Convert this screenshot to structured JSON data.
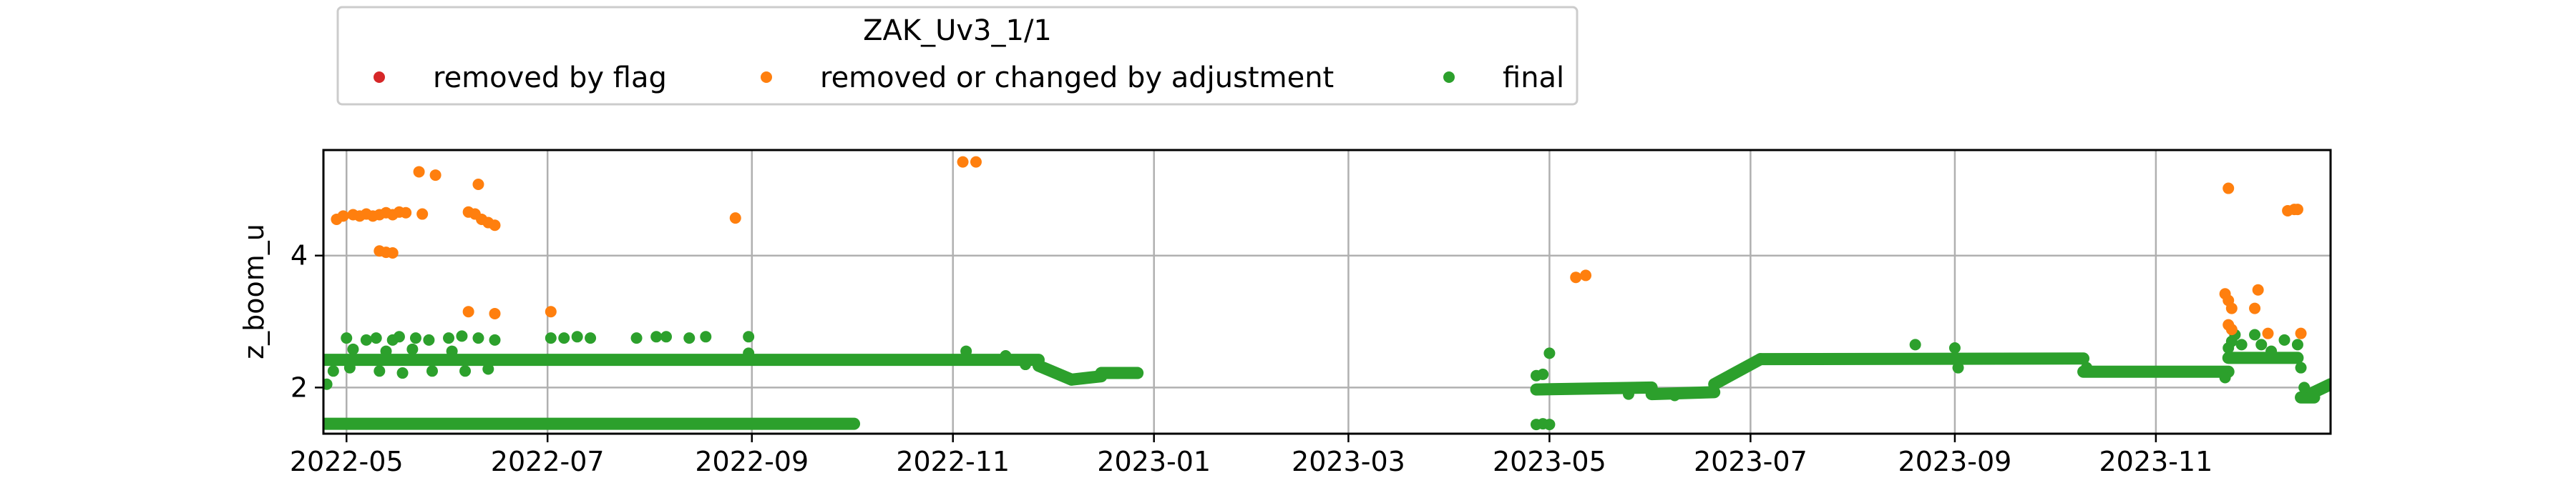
{
  "chart_data": {
    "type": "scatter",
    "title": "",
    "xlabel": "",
    "ylabel": "z_boom_u",
    "grid": true,
    "legend": {
      "title": "ZAK_Uv3_1/1",
      "placement": "top-left-outside",
      "entries": [
        "removed by flag",
        "removed or changed by adjustment",
        "final"
      ]
    },
    "xlim": [
      "2022-04-24",
      "2023-12-24"
    ],
    "ylim": [
      1.3,
      5.6
    ],
    "x_ticks": [
      "2022-05-01",
      "2022-07-01",
      "2022-09-01",
      "2022-11-01",
      "2023-01-01",
      "2023-03-01",
      "2023-05-01",
      "2023-07-01",
      "2023-09-01",
      "2023-11-01"
    ],
    "x_tick_labels": [
      "2022-05",
      "2022-07",
      "2022-09",
      "2022-11",
      "2023-01",
      "2023-03",
      "2023-05",
      "2023-07",
      "2023-09",
      "2023-11"
    ],
    "y_ticks": [
      2,
      4
    ],
    "colors": {
      "removed by flag": "#d62728",
      "removed or changed by adjustment": "#ff7f0e",
      "final": "#2ca02c"
    },
    "series": [
      {
        "name": "removed by flag",
        "points": []
      },
      {
        "name": "removed or changed by adjustment",
        "points": [
          [
            "2022-04-28",
            4.55
          ],
          [
            "2022-04-30",
            4.6
          ],
          [
            "2022-05-03",
            4.62
          ],
          [
            "2022-05-05",
            4.6
          ],
          [
            "2022-05-07",
            4.63
          ],
          [
            "2022-05-09",
            4.6
          ],
          [
            "2022-05-11",
            4.62
          ],
          [
            "2022-05-13",
            4.65
          ],
          [
            "2022-05-15",
            4.62
          ],
          [
            "2022-05-17",
            4.66
          ],
          [
            "2022-05-19",
            4.65
          ],
          [
            "2022-05-24",
            4.63
          ],
          [
            "2022-05-11",
            4.07
          ],
          [
            "2022-05-13",
            4.05
          ],
          [
            "2022-05-15",
            4.04
          ],
          [
            "2022-05-23",
            5.27
          ],
          [
            "2022-05-28",
            5.22
          ],
          [
            "2022-06-07",
            4.66
          ],
          [
            "2022-06-09",
            4.63
          ],
          [
            "2022-06-11",
            4.55
          ],
          [
            "2022-06-13",
            4.5
          ],
          [
            "2022-06-15",
            4.46
          ],
          [
            "2022-06-10",
            5.08
          ],
          [
            "2022-06-07",
            3.15
          ],
          [
            "2022-06-15",
            3.12
          ],
          [
            "2022-07-02",
            3.15
          ],
          [
            "2022-08-27",
            4.57
          ],
          [
            "2022-11-04",
            5.42
          ],
          [
            "2022-11-08",
            5.42
          ],
          [
            "2023-05-09",
            3.67
          ],
          [
            "2023-05-12",
            3.7
          ],
          [
            "2023-11-23",
            5.02
          ],
          [
            "2023-11-22",
            3.42
          ],
          [
            "2023-11-23",
            3.32
          ],
          [
            "2023-11-24",
            3.2
          ],
          [
            "2023-11-23",
            2.95
          ],
          [
            "2023-11-24",
            2.88
          ],
          [
            "2023-12-01",
            3.2
          ],
          [
            "2023-12-02",
            3.48
          ],
          [
            "2023-12-05",
            2.82
          ],
          [
            "2023-12-11",
            4.68
          ],
          [
            "2023-12-13",
            4.7
          ],
          [
            "2023-12-14",
            4.7
          ],
          [
            "2023-12-15",
            2.82
          ]
        ]
      },
      {
        "name": "final",
        "segments": [
          {
            "x0": "2022-04-24",
            "x1": "2022-11-27",
            "y0": 2.42,
            "y1": 2.42
          },
          {
            "x0": "2022-11-27",
            "x1": "2022-12-07",
            "y0": 2.33,
            "y1": 2.12
          },
          {
            "x0": "2022-12-07",
            "x1": "2022-12-16",
            "y0": 2.12,
            "y1": 2.17
          },
          {
            "x0": "2022-12-16",
            "x1": "2022-12-27",
            "y0": 2.22,
            "y1": 2.22
          },
          {
            "x0": "2022-04-24",
            "x1": "2022-10-02",
            "y0": 1.45,
            "y1": 1.45
          },
          {
            "x0": "2023-04-27",
            "x1": "2023-06-01",
            "y0": 1.97,
            "y1": 2.0
          },
          {
            "x0": "2023-06-01",
            "x1": "2023-06-20",
            "y0": 1.9,
            "y1": 1.93
          },
          {
            "x0": "2023-06-20",
            "x1": "2023-07-04",
            "y0": 2.05,
            "y1": 2.43
          },
          {
            "x0": "2023-07-04",
            "x1": "2023-10-10",
            "y0": 2.43,
            "y1": 2.44
          },
          {
            "x0": "2023-10-10",
            "x1": "2023-11-23",
            "y0": 2.24,
            "y1": 2.24
          },
          {
            "x0": "2023-11-23",
            "x1": "2023-12-14",
            "y0": 2.45,
            "y1": 2.45
          },
          {
            "x0": "2023-12-15",
            "x1": "2023-12-19",
            "y0": 1.85,
            "y1": 1.85
          },
          {
            "x0": "2023-12-19",
            "x1": "2023-12-24",
            "y0": 1.93,
            "y1": 2.05
          }
        ],
        "points": [
          [
            "2022-04-25",
            2.05
          ],
          [
            "2022-05-01",
            2.75
          ],
          [
            "2022-05-07",
            2.72
          ],
          [
            "2022-05-10",
            2.75
          ],
          [
            "2022-05-15",
            2.72
          ],
          [
            "2022-05-17",
            2.77
          ],
          [
            "2022-05-22",
            2.75
          ],
          [
            "2022-05-26",
            2.72
          ],
          [
            "2022-06-01",
            2.75
          ],
          [
            "2022-06-05",
            2.78
          ],
          [
            "2022-06-10",
            2.75
          ],
          [
            "2022-06-15",
            2.72
          ],
          [
            "2022-07-02",
            2.75
          ],
          [
            "2022-07-06",
            2.75
          ],
          [
            "2022-07-10",
            2.77
          ],
          [
            "2022-07-14",
            2.75
          ],
          [
            "2022-07-28",
            2.75
          ],
          [
            "2022-08-03",
            2.77
          ],
          [
            "2022-08-06",
            2.77
          ],
          [
            "2022-08-13",
            2.75
          ],
          [
            "2022-08-18",
            2.77
          ],
          [
            "2022-08-31",
            2.77
          ],
          [
            "2022-05-03",
            2.58
          ],
          [
            "2022-05-13",
            2.55
          ],
          [
            "2022-05-21",
            2.58
          ],
          [
            "2022-06-02",
            2.55
          ],
          [
            "2022-04-27",
            2.25
          ],
          [
            "2022-05-02",
            2.3
          ],
          [
            "2022-05-11",
            2.25
          ],
          [
            "2022-05-18",
            2.22
          ],
          [
            "2022-05-27",
            2.25
          ],
          [
            "2022-06-06",
            2.25
          ],
          [
            "2022-06-13",
            2.28
          ],
          [
            "2022-08-31",
            2.52
          ],
          [
            "2022-11-05",
            2.55
          ],
          [
            "2022-11-17",
            2.48
          ],
          [
            "2022-11-23",
            2.35
          ],
          [
            "2023-04-27",
            2.18
          ],
          [
            "2023-04-29",
            2.2
          ],
          [
            "2023-05-01",
            2.52
          ],
          [
            "2023-04-27",
            1.44
          ],
          [
            "2023-04-29",
            1.45
          ],
          [
            "2023-05-01",
            1.44
          ],
          [
            "2023-05-25",
            1.9
          ],
          [
            "2023-06-08",
            1.88
          ],
          [
            "2023-08-20",
            2.65
          ],
          [
            "2023-09-01",
            2.6
          ],
          [
            "2023-09-02",
            2.3
          ],
          [
            "2023-10-11",
            2.3
          ],
          [
            "2023-11-22",
            2.15
          ],
          [
            "2023-11-23",
            2.6
          ],
          [
            "2023-11-24",
            2.7
          ],
          [
            "2023-11-25",
            2.8
          ],
          [
            "2023-11-27",
            2.65
          ],
          [
            "2023-12-01",
            2.8
          ],
          [
            "2023-12-03",
            2.65
          ],
          [
            "2023-12-06",
            2.55
          ],
          [
            "2023-12-10",
            2.72
          ],
          [
            "2023-12-14",
            2.65
          ],
          [
            "2023-12-15",
            2.3
          ],
          [
            "2023-12-16",
            2.0
          ]
        ]
      }
    ]
  }
}
